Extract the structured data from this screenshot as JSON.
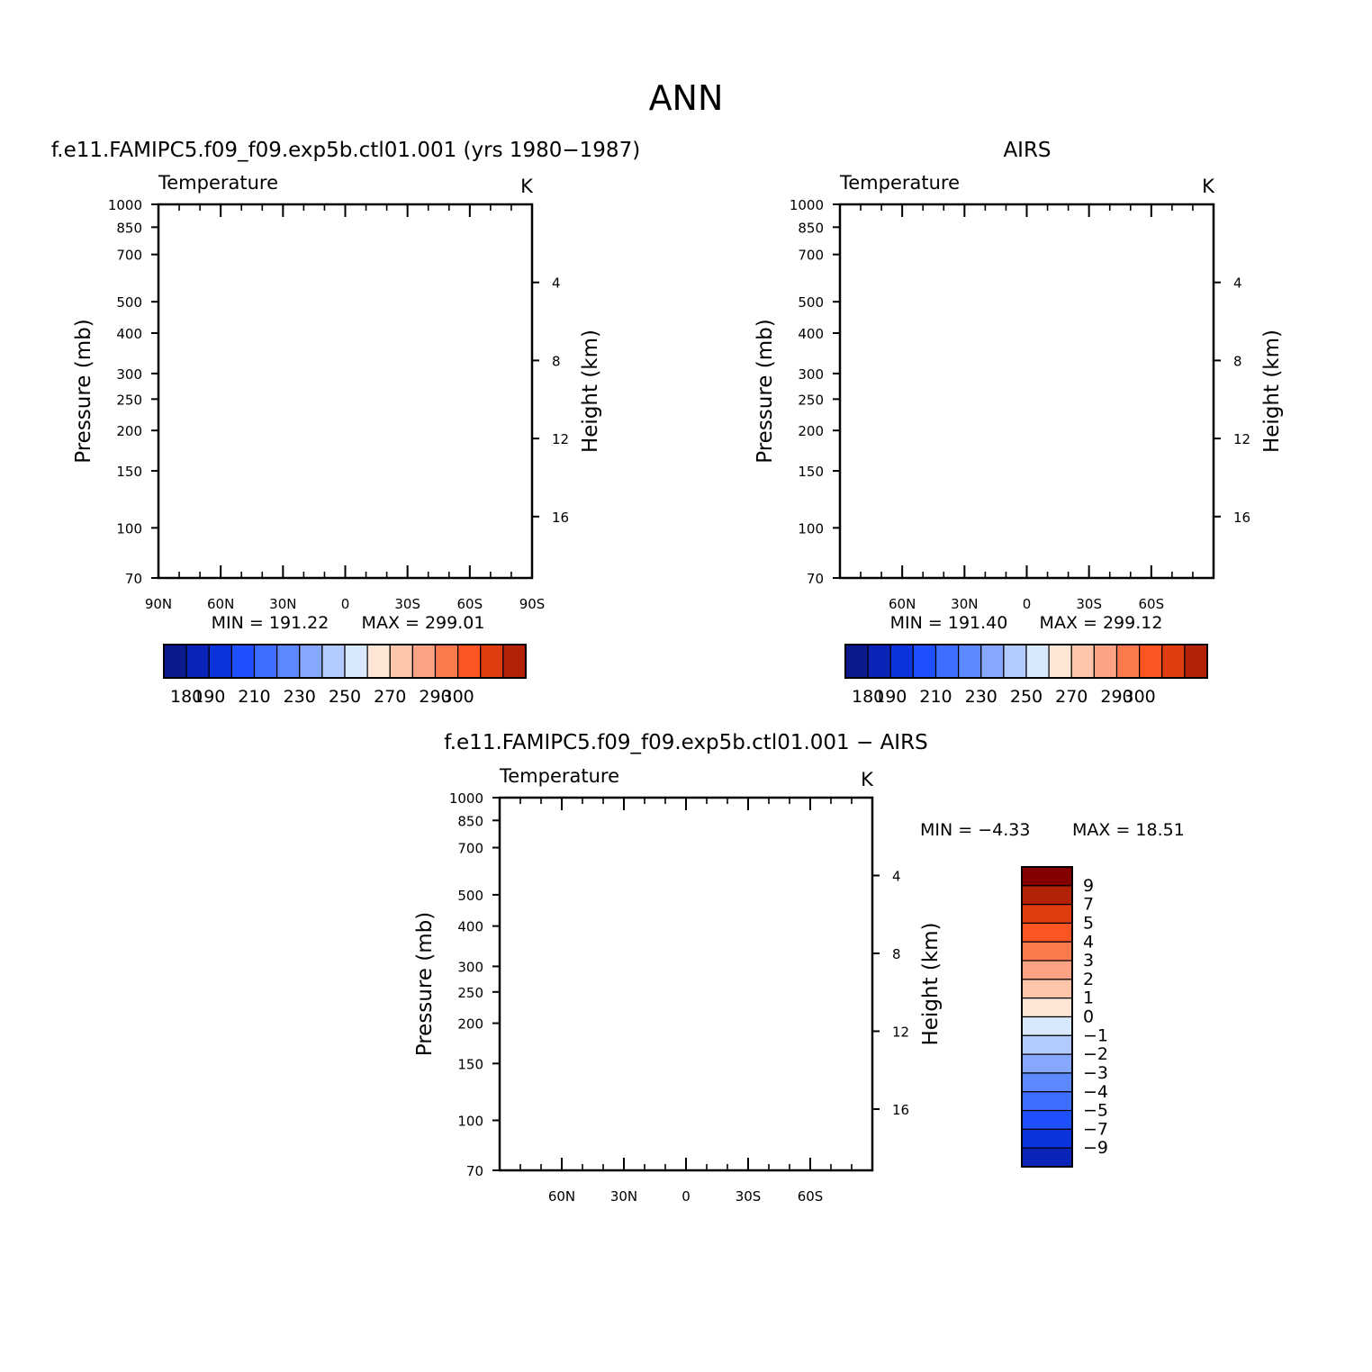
{
  "page": {
    "title": "ANN"
  },
  "colors": {
    "level_palette_14": [
      "#0a1a8c",
      "#0b24b8",
      "#0b34dc",
      "#1f50ff",
      "#3d6eff",
      "#5c89ff",
      "#86a8fc",
      "#b3caff",
      "#d8e8fd",
      "#fee6d6",
      "#fdc5a9",
      "#fca386",
      "#fb7a4e",
      "#fc5423",
      "#df3c10",
      "#b32106",
      "#840000"
    ],
    "mask": "#ffffff"
  },
  "chart_data": [
    {
      "type": "heatmap",
      "panel": "model",
      "title": "f.e11.FAMIPC5.f09_f09.exp5b.ctl01.001 (yrs 1980−1987)",
      "variable": "Temperature",
      "units": "K",
      "ylabel": "Pressure (mb)",
      "ylabel_right": "Height (km)",
      "y_scale": "log",
      "ylim": [
        1000,
        70
      ],
      "y_ticks": [
        70,
        100,
        150,
        200,
        250,
        300,
        400,
        500,
        700,
        850,
        1000
      ],
      "y_right_ticks": [
        16,
        12,
        8,
        4
      ],
      "xlim": [
        90,
        -90
      ],
      "x_ticks": [
        90,
        60,
        30,
        0,
        -30,
        -60,
        -90
      ],
      "x_tick_labels": [
        "90N",
        "60N",
        "30N",
        "0",
        "30S",
        "60S",
        "90S"
      ],
      "min_label": "MIN = 191.22",
      "max_label": "MAX = 299.01",
      "colorbar_levels": [
        180,
        190,
        200,
        210,
        220,
        230,
        240,
        250,
        260,
        270,
        280,
        290,
        300
      ],
      "colorbar_labels": [
        "180",
        "190",
        "210",
        "230",
        "250",
        "270",
        "290",
        "300"
      ],
      "colorbar_label_levels": [
        180,
        190,
        210,
        230,
        250,
        270,
        290,
        300
      ],
      "grid": false
    },
    {
      "type": "heatmap",
      "panel": "obs",
      "title": "AIRS",
      "variable": "Temperature",
      "units": "K",
      "ylabel": "Pressure (mb)",
      "ylabel_right": "Height (km)",
      "y_scale": "log",
      "ylim": [
        1000,
        70
      ],
      "y_ticks": [
        70,
        100,
        150,
        200,
        250,
        300,
        400,
        500,
        700,
        850,
        1000
      ],
      "y_right_ticks": [
        16,
        12,
        8,
        4
      ],
      "xlim": [
        90,
        -90
      ],
      "x_ticks": [
        60,
        30,
        0,
        -30,
        -60
      ],
      "x_tick_labels": [
        "60N",
        "30N",
        "0",
        "30S",
        "60S"
      ],
      "min_label": "MIN = 191.40",
      "max_label": "MAX = 299.12",
      "colorbar_levels": [
        180,
        190,
        200,
        210,
        220,
        230,
        240,
        250,
        260,
        270,
        280,
        290,
        300
      ],
      "colorbar_labels": [
        "180",
        "190",
        "210",
        "230",
        "250",
        "270",
        "290",
        "300"
      ],
      "colorbar_label_levels": [
        180,
        190,
        210,
        230,
        250,
        270,
        290,
        300
      ],
      "grid": false
    },
    {
      "type": "heatmap",
      "panel": "diff",
      "title": "f.e11.FAMIPC5.f09_f09.exp5b.ctl01.001 − AIRS",
      "variable": "Temperature",
      "units": "K",
      "ylabel": "Pressure (mb)",
      "ylabel_right": "Height (km)",
      "y_scale": "log",
      "ylim": [
        1000,
        70
      ],
      "y_ticks": [
        70,
        100,
        150,
        200,
        250,
        300,
        400,
        500,
        700,
        850,
        1000
      ],
      "y_right_ticks": [
        16,
        12,
        8,
        4
      ],
      "xlim": [
        90,
        -90
      ],
      "x_ticks": [
        60,
        30,
        0,
        -30,
        -60
      ],
      "x_tick_labels": [
        "60N",
        "30N",
        "0",
        "30S",
        "60S"
      ],
      "min_label": "MIN =   −4.33",
      "max_label": "MAX =   18.51",
      "colorbar_levels": [
        9,
        7,
        5,
        4,
        3,
        2,
        1,
        0,
        -1,
        -2,
        -3,
        -4,
        -5,
        -7,
        -9
      ],
      "colorbar_labels": [
        "9",
        "7",
        "5",
        "4",
        "3",
        "2",
        "1",
        "0",
        "−1",
        "−2",
        "−3",
        "−4",
        "−5",
        "−7",
        "−9"
      ],
      "grid": false
    }
  ]
}
